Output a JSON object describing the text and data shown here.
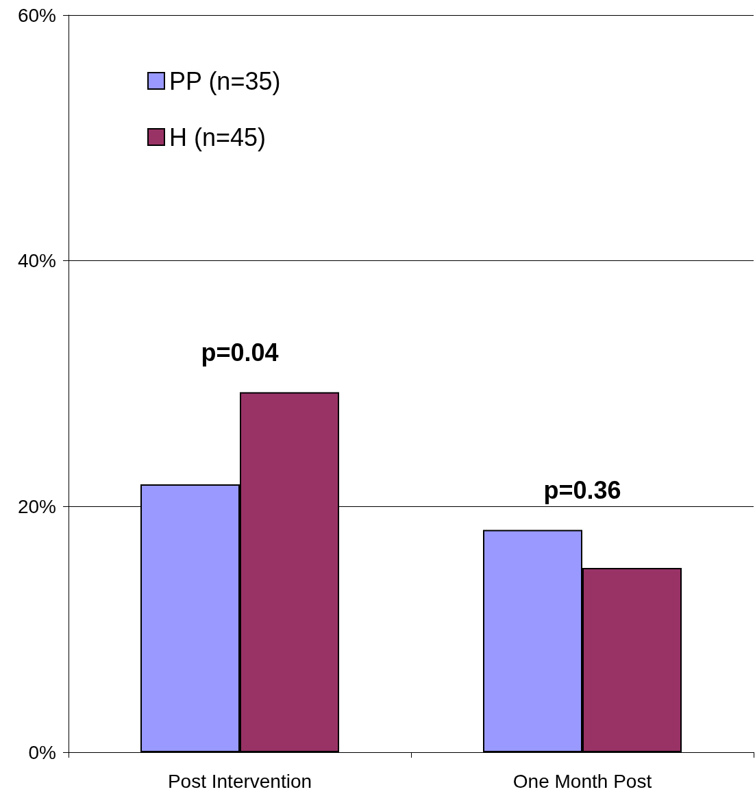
{
  "chart_data": {
    "type": "bar",
    "categories": [
      "Post Intervention",
      "One Month Post"
    ],
    "series": [
      {
        "name": "PP (n=35)",
        "color": "#9999ff",
        "values": [
          21.8,
          18.1
        ]
      },
      {
        "name": "H (n=45)",
        "color": "#993366",
        "values": [
          29.3,
          15.0
        ]
      }
    ],
    "ylim": [
      0,
      60
    ],
    "yticks": [
      {
        "value": 0,
        "label": "0%"
      },
      {
        "value": 20,
        "label": "20%"
      },
      {
        "value": 40,
        "label": "40%"
      },
      {
        "value": 60,
        "label": "60%"
      }
    ],
    "grid": "y",
    "legend": "top left",
    "annotations": [
      "p=0.04",
      "p=0.36"
    ]
  }
}
